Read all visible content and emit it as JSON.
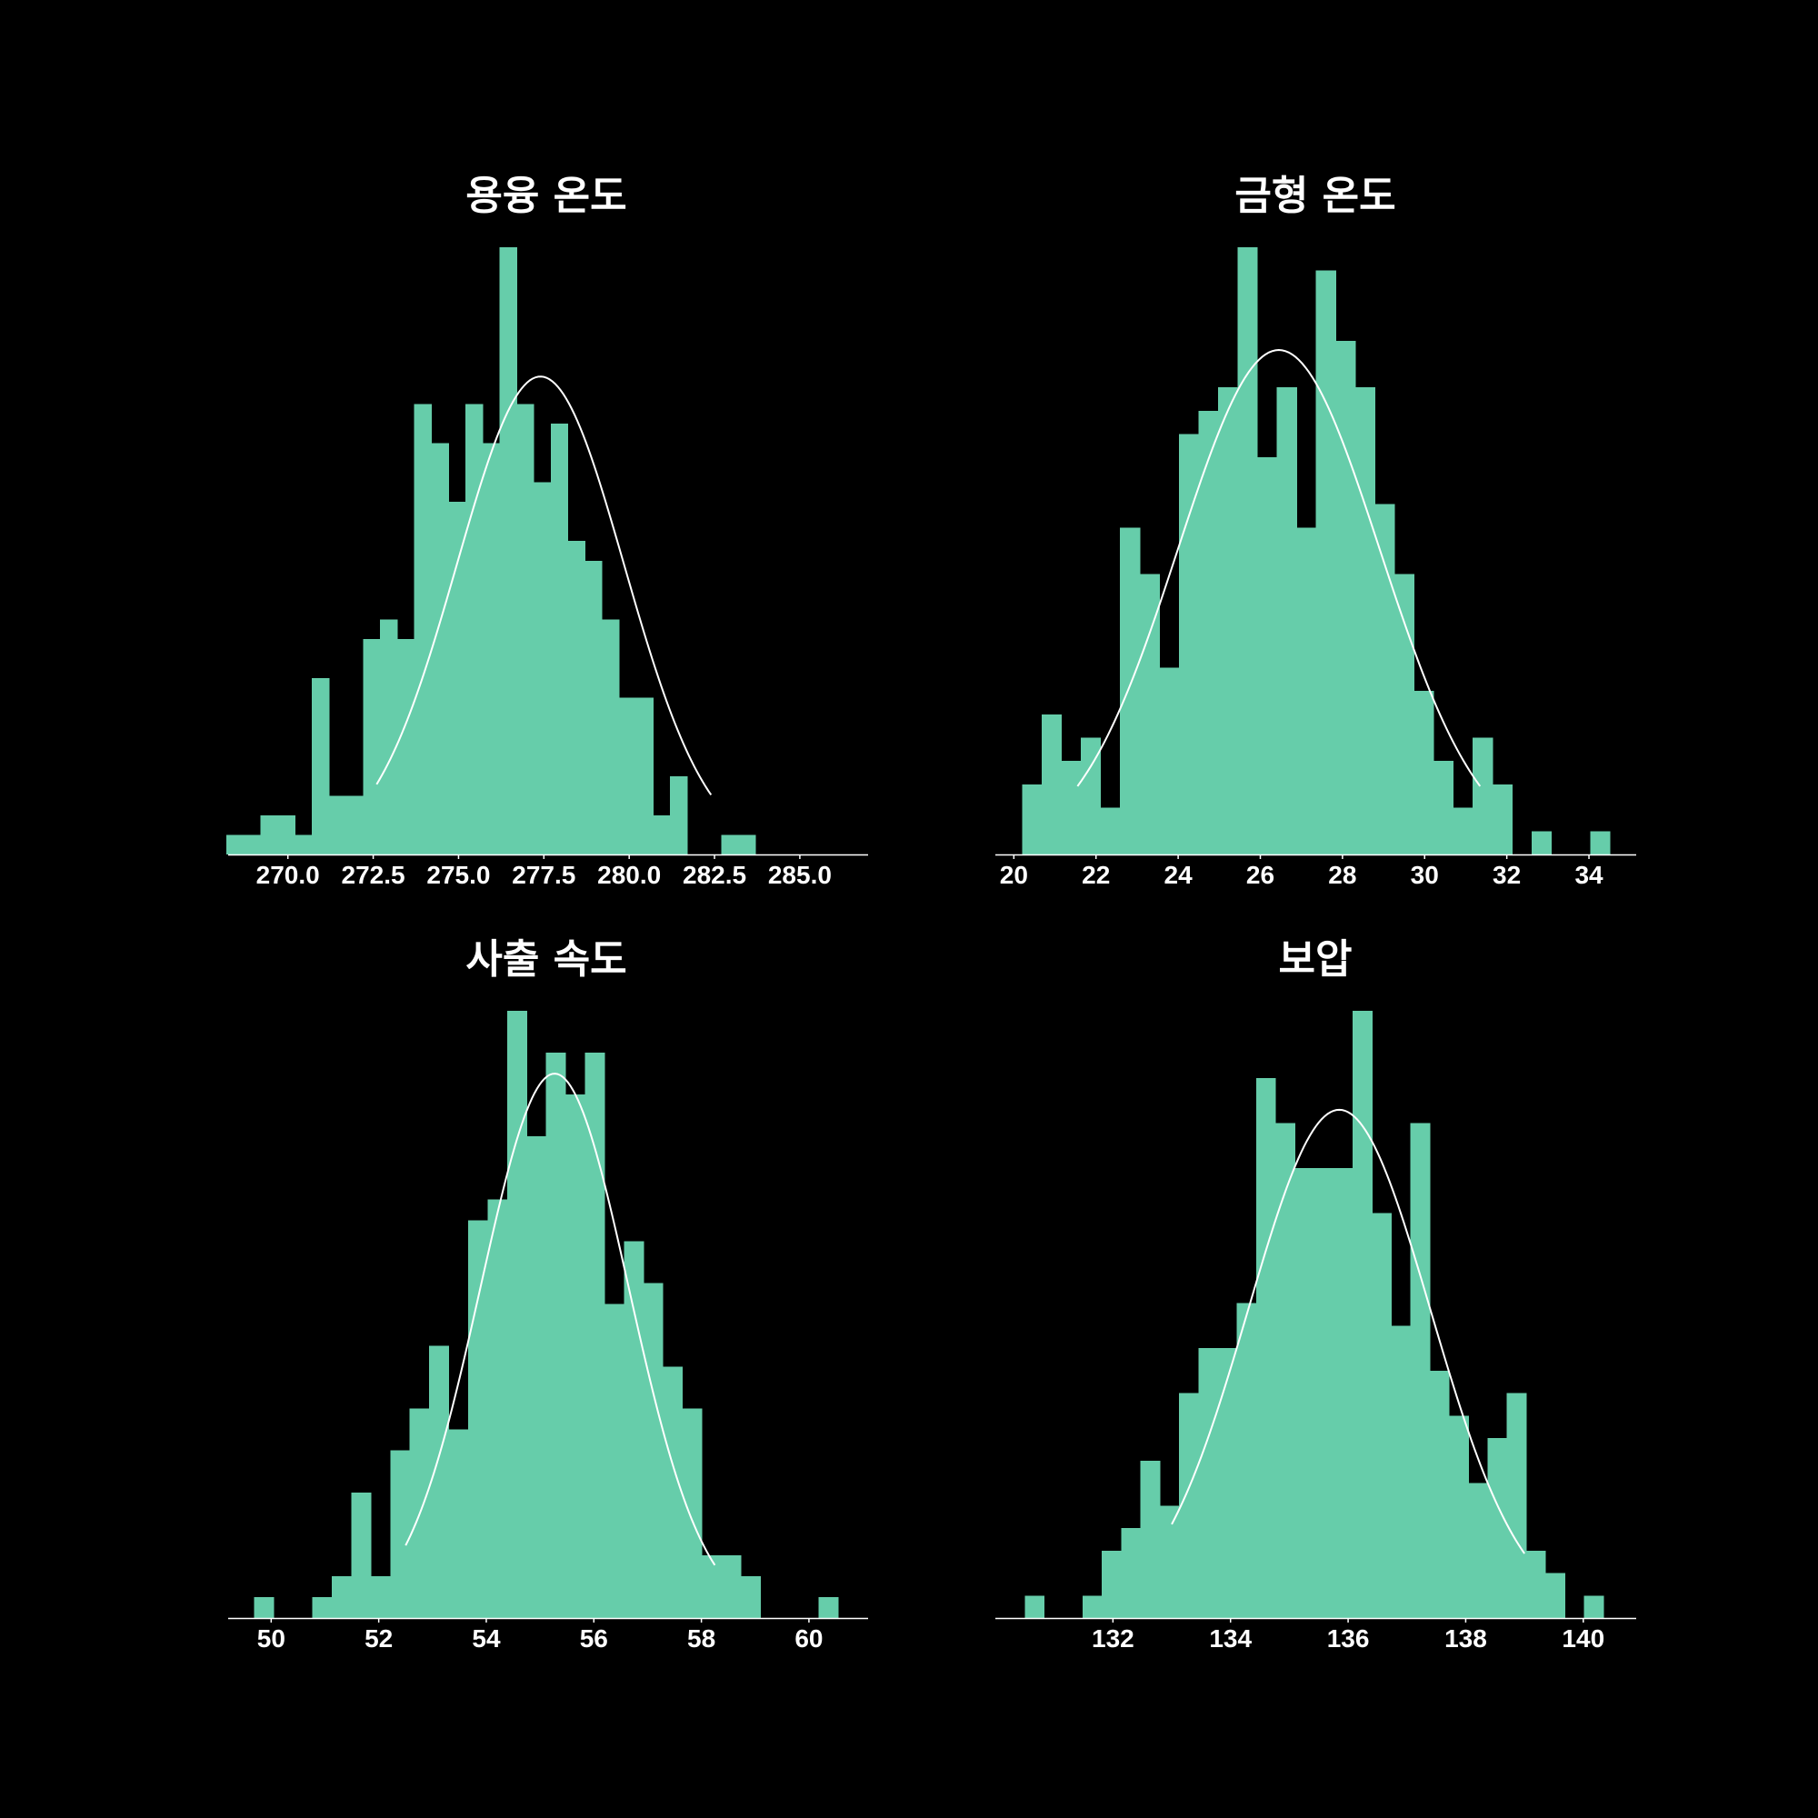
{
  "theme": {
    "background": "#000000",
    "bar_color": "#66cdaa",
    "curve_color": "#ffffff",
    "text_color": "#ffffff"
  },
  "chart_data": [
    {
      "type": "bar",
      "title": "용융 온도",
      "xlabel": "",
      "ylabel": "",
      "bin_start": 268.2,
      "bin_width": 0.5,
      "counts": [
        1,
        1,
        2,
        2,
        1,
        9,
        3,
        3,
        11,
        12,
        11,
        23,
        21,
        18,
        23,
        21,
        31,
        23,
        19,
        22,
        16,
        15,
        12,
        8,
        8,
        2,
        4,
        0,
        0,
        1,
        1
      ],
      "xlim": [
        268.25,
        287.0
      ],
      "ylim": [
        0,
        31
      ],
      "xticks": [
        270.0,
        272.5,
        275.0,
        277.5,
        280.0,
        282.5,
        285.0
      ],
      "xtick_labels": [
        "270.0",
        "272.5",
        "275.0",
        "277.5",
        "280.0",
        "282.5",
        "285.0"
      ],
      "normal_curve": {
        "mean": 277.4,
        "sd": 2.45,
        "peak_count": 24.4,
        "x_range": [
          272.6,
          282.4
        ]
      },
      "grid": false,
      "legend": "none"
    },
    {
      "type": "bar",
      "title": "금형 온도",
      "xlabel": "",
      "ylabel": "",
      "bin_start": 20.2,
      "bin_width": 0.477,
      "counts": [
        3,
        6,
        4,
        5,
        2,
        14,
        12,
        8,
        18,
        19,
        20,
        26,
        17,
        20,
        14,
        25,
        22,
        20,
        15,
        12,
        7,
        4,
        2,
        5,
        3,
        0,
        1,
        0,
        0,
        1
      ],
      "xlim": [
        19.55,
        35.15
      ],
      "ylim": [
        0,
        26
      ],
      "xticks": [
        20,
        22,
        24,
        26,
        28,
        30,
        32,
        34
      ],
      "xtick_labels": [
        "20",
        "22",
        "24",
        "26",
        "28",
        "30",
        "32",
        "34"
      ],
      "normal_curve": {
        "mean": 26.45,
        "sd": 2.45,
        "peak_count": 21.6,
        "x_range": [
          21.55,
          31.35
        ]
      },
      "grid": false,
      "legend": "none"
    },
    {
      "type": "bar",
      "title": "사출 속도",
      "xlabel": "",
      "ylabel": "",
      "bin_start": 49.68,
      "bin_width": 0.362,
      "counts": [
        1,
        0,
        0,
        1,
        2,
        6,
        2,
        8,
        10,
        13,
        9,
        19,
        20,
        29,
        23,
        27,
        25,
        27,
        15,
        18,
        16,
        12,
        10,
        3,
        3,
        2,
        0,
        0,
        0,
        1
      ],
      "xlim": [
        49.2,
        61.1
      ],
      "ylim": [
        0,
        29
      ],
      "xticks": [
        50,
        52,
        54,
        56,
        58,
        60
      ],
      "xtick_labels": [
        "50",
        "52",
        "54",
        "56",
        "58",
        "60"
      ],
      "normal_curve": {
        "mean": 55.27,
        "sd": 1.38,
        "peak_count": 26.0,
        "x_range": [
          52.5,
          58.25
        ]
      },
      "grid": false,
      "legend": "none"
    },
    {
      "type": "bar",
      "title": "보압",
      "xlabel": "",
      "ylabel": "",
      "bin_start": 130.5,
      "bin_width": 0.328,
      "counts": [
        1,
        0,
        0,
        1,
        3,
        4,
        7,
        5,
        10,
        12,
        12,
        14,
        24,
        22,
        20,
        20,
        20,
        27,
        18,
        13,
        22,
        11,
        9,
        6,
        8,
        10,
        3,
        2,
        0,
        1
      ],
      "xlim": [
        130.0,
        140.9
      ],
      "ylim": [
        0,
        27
      ],
      "xticks": [
        132,
        134,
        136,
        138,
        140
      ],
      "xtick_labels": [
        "132",
        "134",
        "136",
        "138",
        "140"
      ],
      "normal_curve": {
        "mean": 135.85,
        "sd": 1.55,
        "peak_count": 22.6,
        "x_range": [
          133.0,
          139.0
        ]
      },
      "grid": false,
      "legend": "none"
    }
  ]
}
